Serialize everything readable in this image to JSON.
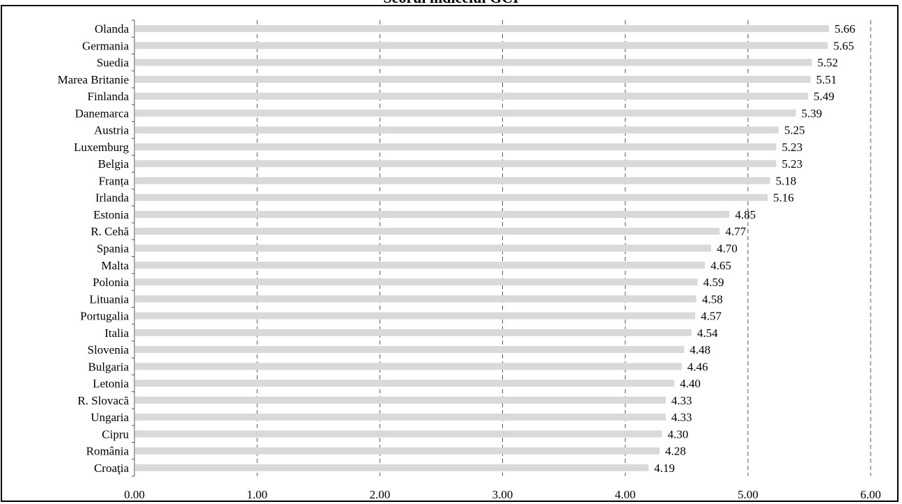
{
  "chart_data": {
    "type": "bar",
    "orientation": "horizontal",
    "title": "Scorul indicelui GCI",
    "xlabel": "",
    "ylabel": "",
    "xlim": [
      0,
      6
    ],
    "x_ticks": [
      "0.00",
      "1.00",
      "2.00",
      "3.00",
      "4.00",
      "5.00",
      "6.00"
    ],
    "grid": "vertical dashed",
    "bar_color": "#d9d9d9",
    "categories": [
      "Olanda",
      "Germania",
      "Suedia",
      "Marea Britanie",
      "Finlanda",
      "Danemarca",
      "Austria",
      "Luxemburg",
      "Belgia",
      "Franța",
      "Irlanda",
      "Estonia",
      "R. Cehă",
      "Spania",
      "Malta",
      "Polonia",
      "Lituania",
      "Portugalia",
      "Italia",
      "Slovenia",
      "Bulgaria",
      "Letonia",
      "R. Slovacă",
      "Ungaria",
      "Cipru",
      "România",
      "Croaţia"
    ],
    "values": [
      5.66,
      5.65,
      5.52,
      5.51,
      5.49,
      5.39,
      5.25,
      5.23,
      5.23,
      5.18,
      5.16,
      4.85,
      4.77,
      4.7,
      4.65,
      4.59,
      4.58,
      4.57,
      4.54,
      4.48,
      4.46,
      4.4,
      4.33,
      4.33,
      4.3,
      4.28,
      4.19
    ],
    "value_labels": [
      "5.66",
      "5.65",
      "5.52",
      "5.51",
      "5.49",
      "5.39",
      "5.25",
      "5.23",
      "5.23",
      "5.18",
      "5.16",
      "4.85",
      "4.77",
      "4.70",
      "4.65",
      "4.59",
      "4.58",
      "4.57",
      "4.54",
      "4.48",
      "4.46",
      "4.40",
      "4.33",
      "4.33",
      "4.30",
      "4.28",
      "4.19"
    ]
  }
}
